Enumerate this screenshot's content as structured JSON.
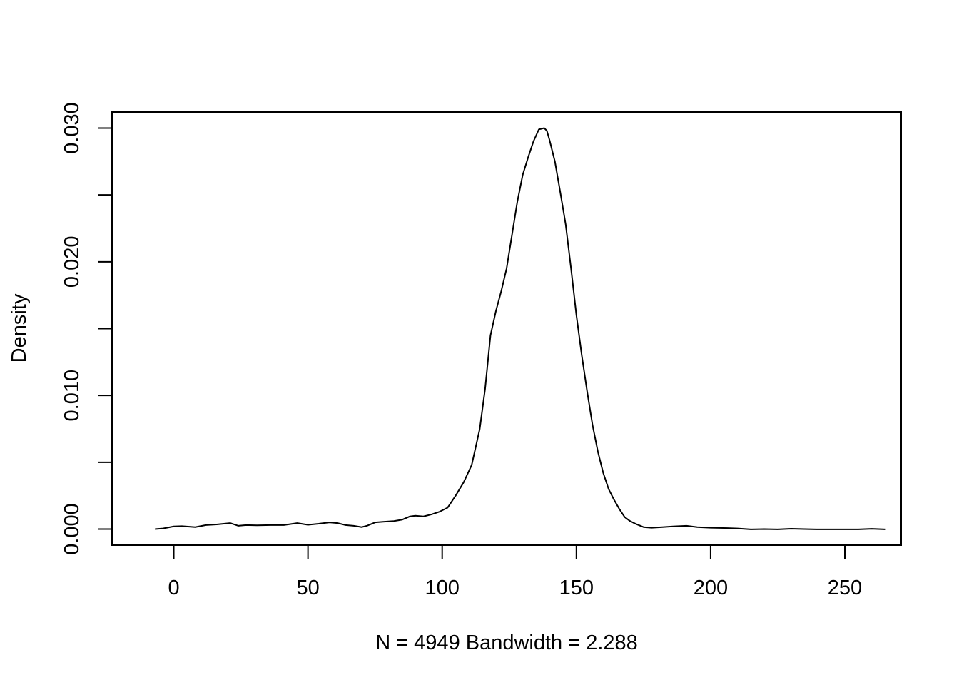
{
  "chart_data": {
    "type": "line",
    "title": "",
    "xlabel": "N = 4949   Bandwidth = 2.288",
    "ylabel": "Density",
    "xlim": [
      -23,
      271
    ],
    "ylim": [
      -0.0012,
      0.0312
    ],
    "x_ticks": [
      0,
      50,
      100,
      150,
      200,
      250
    ],
    "x_tick_labels": [
      "0",
      "50",
      "100",
      "150",
      "200",
      "250"
    ],
    "y_ticks": [
      0,
      0.005,
      0.01,
      0.015,
      0.02,
      0.025,
      0.03
    ],
    "y_tick_labels": [
      "0.000",
      "",
      "0.010",
      "",
      "0.020",
      "",
      "0.030"
    ],
    "grid": false,
    "zero_line": true,
    "colors": {
      "line": "#000000",
      "zero_line": "#bebebe",
      "axes": "#000000"
    },
    "series": [
      {
        "x": [
          -7,
          -4,
          0,
          3,
          8,
          12,
          16,
          21,
          24,
          27,
          31,
          36,
          41,
          46,
          50,
          54,
          58,
          61,
          64,
          67,
          70,
          72,
          75,
          78,
          82,
          85,
          88,
          90,
          93,
          96,
          99,
          102,
          105,
          108,
          111,
          114,
          116,
          118,
          120,
          122,
          124,
          126,
          128,
          130,
          132,
          134,
          136,
          138,
          139,
          140,
          142,
          144,
          146,
          148,
          150,
          152,
          154,
          156,
          158,
          160,
          162,
          164,
          166,
          168,
          170,
          172,
          175,
          178,
          182,
          186,
          191,
          195,
          200,
          205,
          210,
          215,
          220,
          225,
          230,
          235,
          240,
          245,
          250,
          255,
          260,
          265
        ],
        "y": [
          0,
          5e-05,
          0.0002,
          0.00022,
          0.00015,
          0.0003,
          0.00035,
          0.00045,
          0.00025,
          0.0003,
          0.00028,
          0.0003,
          0.0003,
          0.00045,
          0.00032,
          0.0004,
          0.0005,
          0.00045,
          0.0003,
          0.00025,
          0.00015,
          0.00025,
          0.0005,
          0.00055,
          0.0006,
          0.0007,
          0.00095,
          0.001,
          0.00095,
          0.0011,
          0.0013,
          0.0016,
          0.0025,
          0.0035,
          0.0048,
          0.0075,
          0.0105,
          0.0145,
          0.0163,
          0.0178,
          0.0195,
          0.022,
          0.0245,
          0.0265,
          0.0278,
          0.029,
          0.0299,
          0.03,
          0.0298,
          0.0291,
          0.0275,
          0.0252,
          0.0228,
          0.0195,
          0.016,
          0.013,
          0.0103,
          0.0078,
          0.0058,
          0.0042,
          0.003,
          0.0022,
          0.0015,
          0.0009,
          0.0006,
          0.0004,
          0.00015,
          0.0001,
          0.00015,
          0.0002,
          0.00025,
          0.00015,
          0.0001,
          8e-05,
          5e-05,
          -2e-05,
          0.0,
          -2e-05,
          3e-05,
          0.0,
          -2e-05,
          -2e-05,
          -2e-05,
          -2e-05,
          2e-05,
          -2e-05
        ]
      }
    ]
  }
}
